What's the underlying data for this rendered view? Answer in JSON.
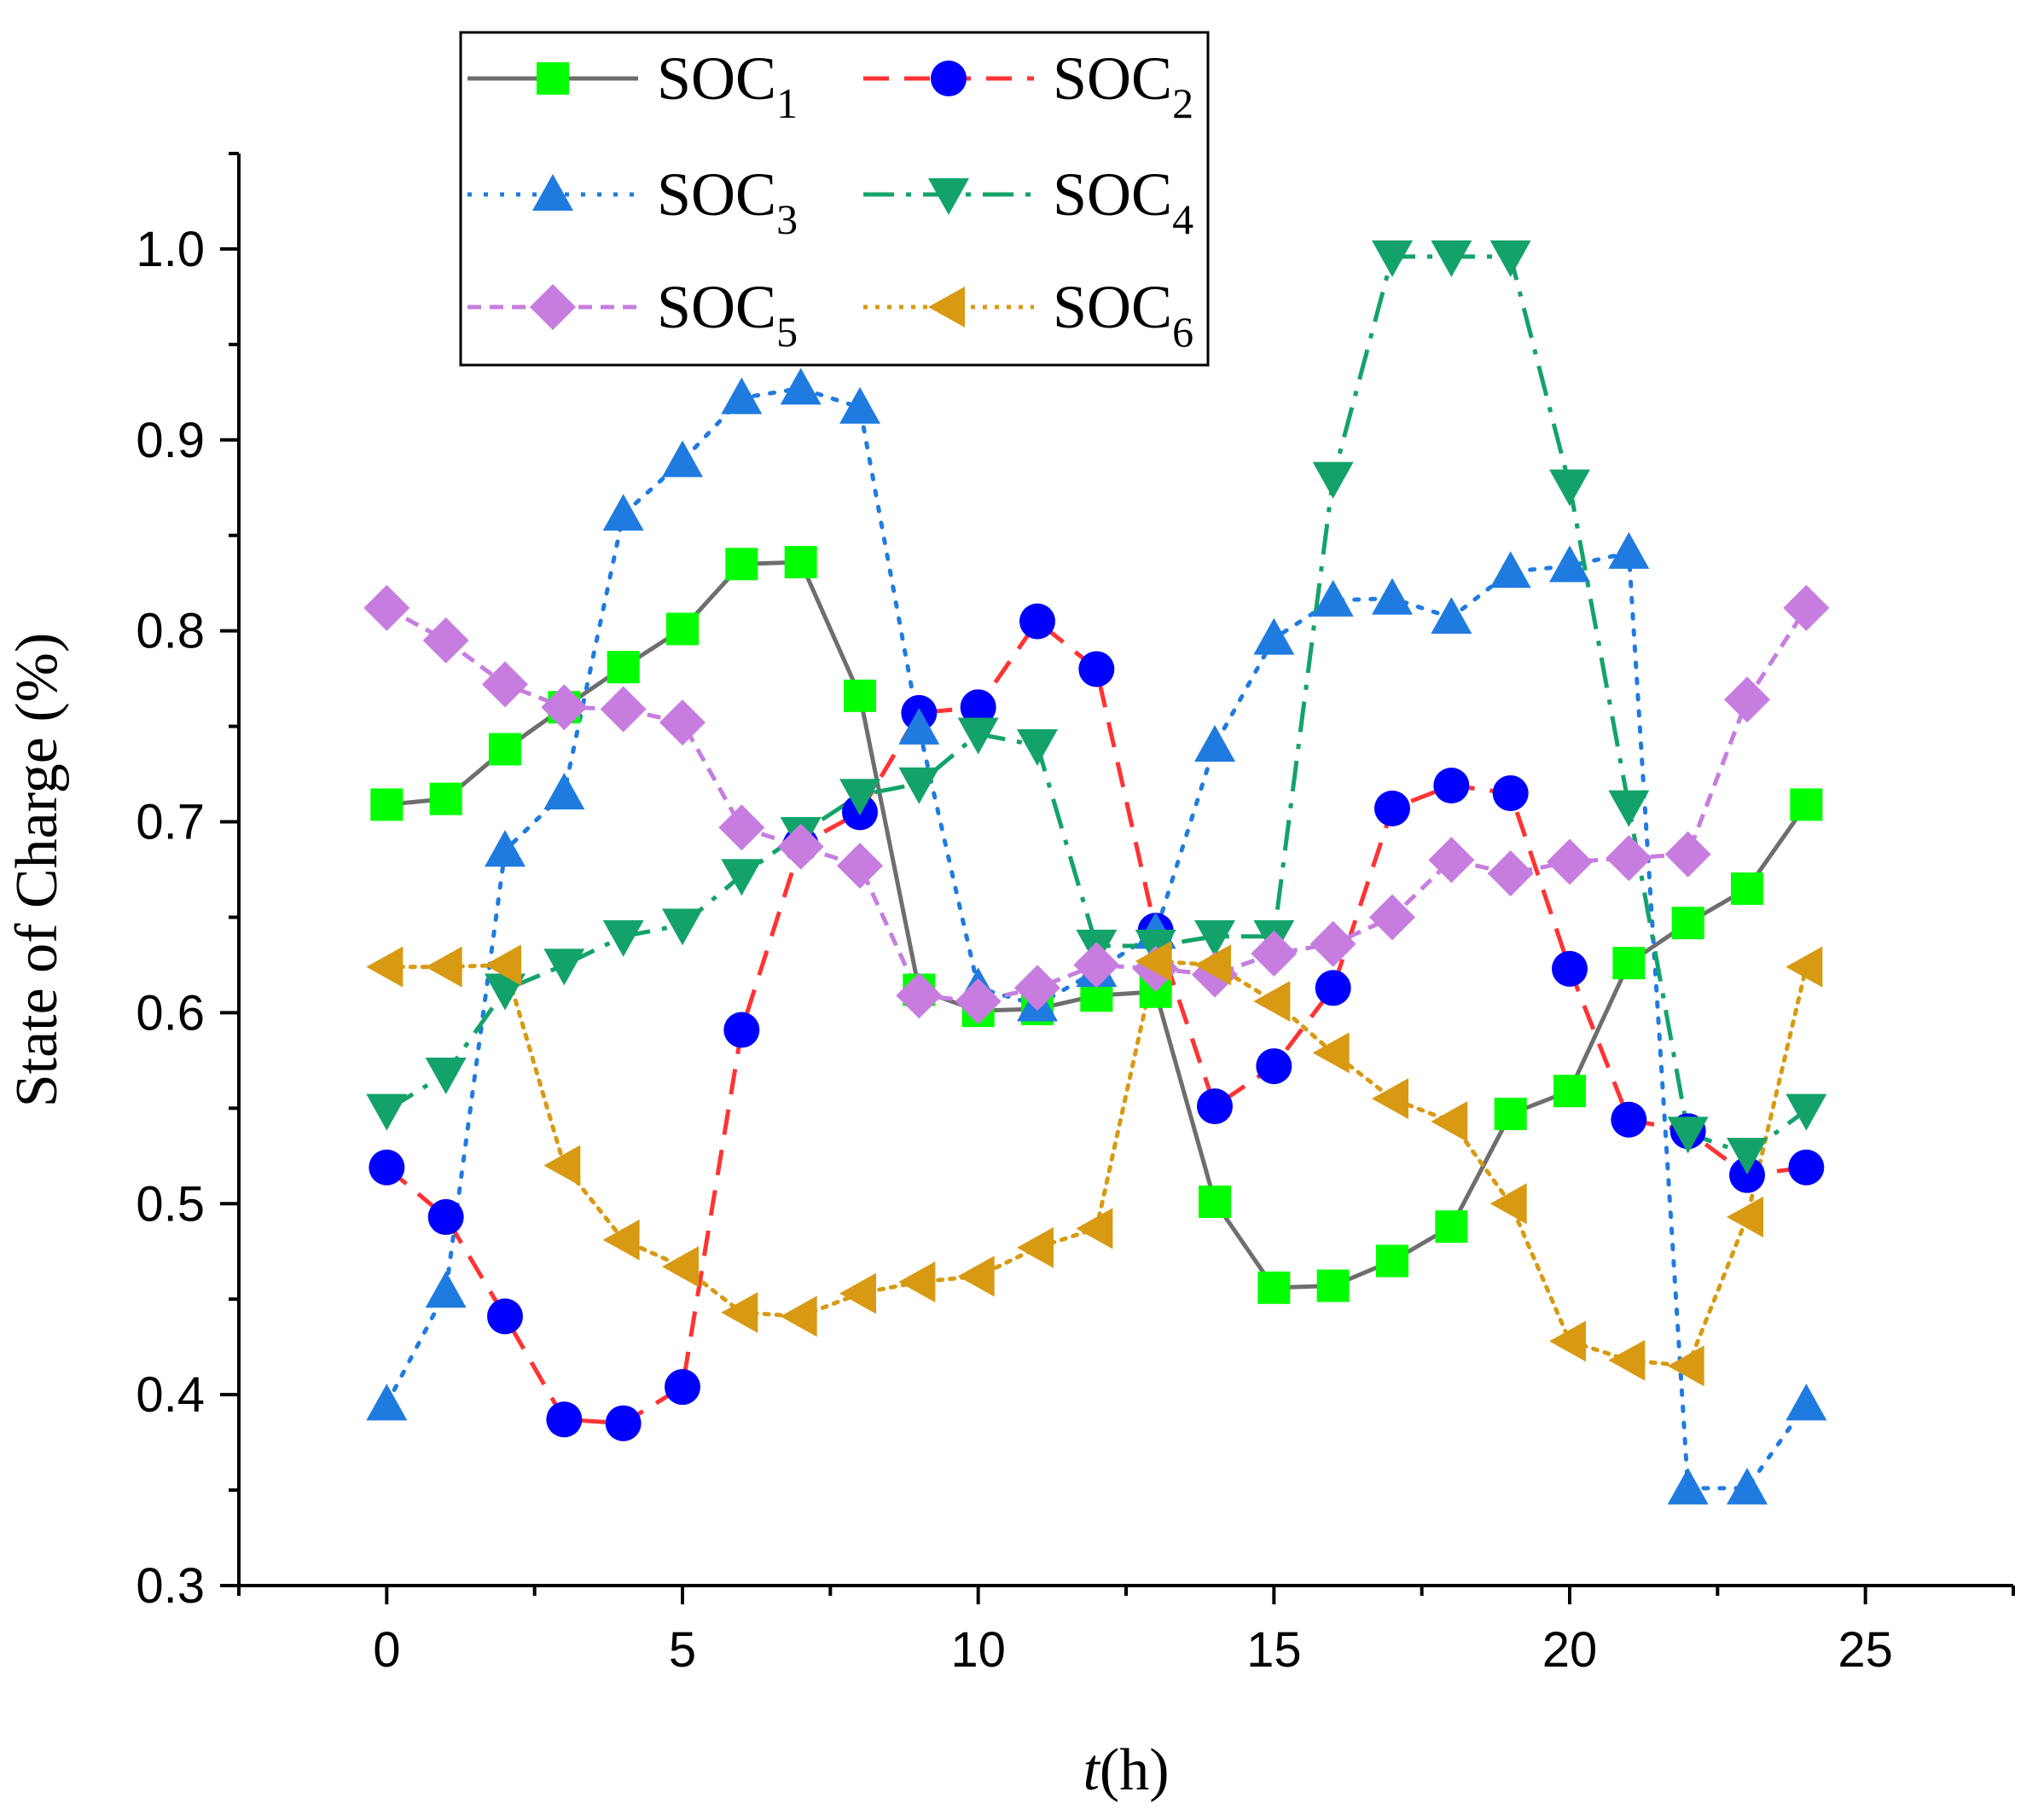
{
  "chart_data": {
    "type": "line",
    "title": "",
    "xlabel_italic": "t",
    "xlabel_rest": "(h)",
    "ylabel": "State of Charge (%)",
    "xlim": [
      -2.5,
      27.5
    ],
    "ylim": [
      0.3,
      1.05
    ],
    "x_ticks": [
      0,
      5,
      10,
      15,
      20,
      25
    ],
    "x_tick_labels": [
      "0",
      "5",
      "10",
      "15",
      "20",
      "25"
    ],
    "y_ticks": [
      0.3,
      0.4,
      0.5,
      0.6,
      0.7,
      0.8,
      0.9,
      1.0
    ],
    "y_tick_labels": [
      "0.3",
      "0.4",
      "0.5",
      "0.6",
      "0.7",
      "0.8",
      "0.9",
      "1.0"
    ],
    "grid": false,
    "legend_position": "top-left",
    "x": [
      0,
      1,
      2,
      3,
      4,
      5,
      6,
      7,
      8,
      9,
      10,
      11,
      12,
      13,
      14,
      15,
      16,
      17,
      18,
      19,
      20,
      21,
      22,
      23,
      24
    ],
    "series": [
      {
        "name": "SOC",
        "subscript": "1",
        "line_color": "#6e6e6e",
        "marker_color": "#00ff00",
        "marker": "square",
        "dash": "solid",
        "values": [
          0.709,
          0.712,
          0.738,
          0.76,
          0.781,
          0.801,
          0.835,
          0.836,
          0.766,
          0.612,
          0.601,
          0.602,
          0.609,
          0.611,
          0.501,
          0.456,
          0.457,
          0.47,
          0.488,
          0.547,
          0.559,
          0.626,
          0.647,
          0.665,
          0.709
        ]
      },
      {
        "name": "SOC",
        "subscript": "2",
        "line_color": "#ff3333",
        "marker_color": "#0000ff",
        "marker": "circle",
        "dash": "dash",
        "values": [
          0.519,
          0.493,
          0.441,
          0.387,
          0.385,
          0.404,
          0.591,
          0.688,
          0.705,
          0.757,
          0.76,
          0.805,
          0.78,
          0.643,
          0.551,
          0.572,
          0.613,
          0.707,
          0.719,
          0.715,
          0.623,
          0.544,
          0.538,
          0.515,
          0.519
        ]
      },
      {
        "name": "SOC",
        "subscript": "3",
        "line_color": "#1f7be0",
        "marker_color": "#1f7be0",
        "marker": "triangle-up",
        "dash": "dot",
        "values": [
          0.395,
          0.454,
          0.685,
          0.715,
          0.861,
          0.889,
          0.922,
          0.927,
          0.917,
          0.749,
          0.613,
          0.604,
          0.622,
          0.642,
          0.74,
          0.796,
          0.816,
          0.817,
          0.807,
          0.831,
          0.834,
          0.841,
          0.351,
          0.351,
          0.395
        ]
      },
      {
        "name": "SOC",
        "subscript": "4",
        "line_color": "#13a36a",
        "marker_color": "#13a36a",
        "marker": "triangle-down",
        "dash": "dashdot",
        "values": [
          0.549,
          0.568,
          0.612,
          0.625,
          0.64,
          0.646,
          0.672,
          0.694,
          0.714,
          0.72,
          0.746,
          0.74,
          0.635,
          0.635,
          0.64,
          0.64,
          0.88,
          0.996,
          0.996,
          0.996,
          0.876,
          0.708,
          0.537,
          0.526,
          0.549
        ]
      },
      {
        "name": "SOC",
        "subscript": "5",
        "line_color": "#c77ddf",
        "marker_color": "#c77ddf",
        "marker": "diamond",
        "dash": "shortdash",
        "values": [
          0.812,
          0.795,
          0.772,
          0.76,
          0.759,
          0.752,
          0.697,
          0.687,
          0.677,
          0.609,
          0.606,
          0.613,
          0.625,
          0.623,
          0.62,
          0.631,
          0.636,
          0.65,
          0.68,
          0.673,
          0.679,
          0.681,
          0.683,
          0.764,
          0.812
        ]
      },
      {
        "name": "SOC",
        "subscript": "6",
        "line_color": "#d89a12",
        "marker_color": "#d89a12",
        "marker": "triangle-left",
        "dash": "finedot",
        "values": [
          0.624,
          0.624,
          0.625,
          0.52,
          0.481,
          0.467,
          0.443,
          0.441,
          0.453,
          0.459,
          0.462,
          0.477,
          0.487,
          0.627,
          0.625,
          0.606,
          0.579,
          0.555,
          0.543,
          0.5,
          0.428,
          0.418,
          0.415,
          0.493,
          0.624
        ]
      }
    ]
  }
}
